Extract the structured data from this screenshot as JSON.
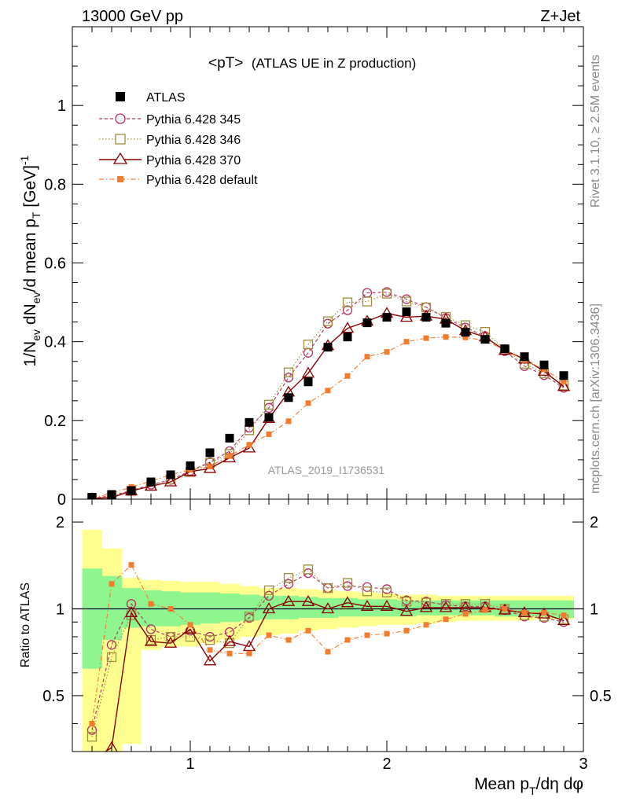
{
  "header": {
    "left": "13000 GeV pp",
    "right": "Z+Jet"
  },
  "side_labels": {
    "rivet": "Rivet 3.1.10, ≥ 2.5M events",
    "site": "mcplots.cern.ch [arXiv:1306.3436]"
  },
  "chart_data": [
    {
      "type": "scatter",
      "panel": "main",
      "title": "<pT>",
      "subtitle": "(ATLAS UE in Z production)",
      "analysis_label": "ATLAS_2019_I1736531",
      "ylabel": "1/N_ev dN_ev/d mean p_T [GeV]^-1",
      "ylabel_parts": {
        "p1": "1/N",
        "p1sub": "ev",
        "p2": " dN",
        "p2sub": "ev",
        "p3": "/d mean p",
        "p3sub": "T",
        "p4": " [GeV]",
        "p4sup": "-1"
      },
      "xlim": [
        0.4,
        3.0
      ],
      "ylim": [
        0,
        1.2
      ],
      "yticks": [
        0,
        0.2,
        0.4,
        0.6,
        0.8,
        1
      ],
      "ytick_labels": [
        "0",
        "0.2",
        "0.4",
        "0.6",
        "0.8",
        "1"
      ],
      "legend_position": "top-left",
      "x": [
        0.5,
        0.6,
        0.7,
        0.8,
        0.9,
        1.0,
        1.1,
        1.2,
        1.3,
        1.4,
        1.5,
        1.6,
        1.7,
        1.8,
        1.9,
        2.0,
        2.1,
        2.2,
        2.3,
        2.4,
        2.5,
        2.6,
        2.7,
        2.8,
        2.9
      ],
      "series": [
        {
          "name": "ATLAS",
          "color": "#000000",
          "marker": "filled-square",
          "line": "none",
          "values": [
            0.005,
            0.012,
            0.022,
            0.044,
            0.062,
            0.085,
            0.118,
            0.155,
            0.195,
            0.208,
            0.258,
            0.298,
            0.386,
            0.412,
            0.448,
            0.462,
            0.476,
            0.462,
            0.447,
            0.424,
            0.406,
            0.382,
            0.362,
            0.341,
            0.314
          ]
        },
        {
          "name": "Pythia 6.428 345",
          "color": "#b03060",
          "marker": "open-circle",
          "line": "dashed",
          "values": [
            0.002,
            0.009,
            0.022,
            0.037,
            0.049,
            0.072,
            0.094,
            0.122,
            0.182,
            0.232,
            0.309,
            0.372,
            0.446,
            0.48,
            0.524,
            0.526,
            0.508,
            0.488,
            0.46,
            0.436,
            0.414,
            0.376,
            0.338,
            0.315,
            0.283
          ]
        },
        {
          "name": "Pythia 6.428 346",
          "color": "#a08c3c",
          "marker": "open-square",
          "line": "dotted",
          "values": [
            0.003,
            0.008,
            0.021,
            0.034,
            0.05,
            0.069,
            0.092,
            0.115,
            0.175,
            0.24,
            0.322,
            0.393,
            0.452,
            0.5,
            0.502,
            0.522,
            0.502,
            0.487,
            0.463,
            0.442,
            0.425,
            0.38,
            0.344,
            0.32,
            0.289
          ]
        },
        {
          "name": "Pythia 6.428 370",
          "color": "#8b0000",
          "marker": "open-triangle",
          "line": "solid",
          "values": [
            0.0015,
            0.004,
            0.021,
            0.033,
            0.044,
            0.07,
            0.078,
            0.105,
            0.13,
            0.205,
            0.272,
            0.32,
            0.39,
            0.434,
            0.452,
            0.472,
            0.462,
            0.465,
            0.457,
            0.428,
            0.412,
            0.378,
            0.356,
            0.325,
            0.286
          ]
        },
        {
          "name": "Pythia 6.428 default",
          "color": "#f37b2d",
          "marker": "filled-small-square",
          "line": "dashdot",
          "values": [
            0.002,
            0.015,
            0.031,
            0.046,
            0.062,
            0.075,
            0.083,
            0.11,
            0.138,
            0.165,
            0.198,
            0.244,
            0.276,
            0.313,
            0.362,
            0.374,
            0.4,
            0.409,
            0.412,
            0.411,
            0.403,
            0.379,
            0.353,
            0.33,
            0.299
          ]
        }
      ]
    },
    {
      "type": "scatter",
      "panel": "ratio",
      "ylabel": "Ratio to ATLAS",
      "xlabel": "Mean p_T/dη dφ",
      "xlabel_parts": {
        "p1": "Mean p",
        "p1sub": "T",
        "p2": "/dη dφ"
      },
      "xlim": [
        0.4,
        3.0
      ],
      "ylim": [
        0.32,
        2.4
      ],
      "log_scale_y": true,
      "yticks": [
        0.5,
        1,
        2
      ],
      "ytick_labels": [
        "0.5",
        "1",
        "2"
      ],
      "xticks": [
        1,
        2,
        3
      ],
      "xtick_labels": [
        "1",
        "2",
        "3"
      ],
      "reference_line": 1,
      "uncertainty_bands": {
        "x_edges": [
          0.45,
          0.55,
          0.65,
          0.75,
          0.85,
          0.95,
          1.05,
          1.15,
          1.25,
          1.35,
          1.45,
          1.55,
          1.65,
          1.75,
          1.85,
          1.95,
          2.05,
          2.15,
          2.25,
          2.35,
          2.45,
          2.55,
          2.65,
          2.75,
          2.85,
          2.95
        ],
        "stat": {
          "color": "#8ff58f",
          "low": [
            0.62,
            0.78,
            0.86,
            0.87,
            0.87,
            0.88,
            0.89,
            0.9,
            0.91,
            0.92,
            0.92,
            0.93,
            0.93,
            0.94,
            0.94,
            0.94,
            0.94,
            0.95,
            0.95,
            0.95,
            0.95,
            0.94,
            0.94,
            0.94,
            0.93
          ],
          "high": [
            1.38,
            1.3,
            1.18,
            1.16,
            1.15,
            1.14,
            1.14,
            1.13,
            1.12,
            1.11,
            1.11,
            1.1,
            1.09,
            1.09,
            1.08,
            1.08,
            1.07,
            1.07,
            1.07,
            1.07,
            1.07,
            1.07,
            1.07,
            1.07,
            1.07
          ]
        },
        "syst": {
          "color": "#ffff8f",
          "low": [
            0.3,
            0.3,
            0.34,
            0.72,
            0.74,
            0.74,
            0.76,
            0.78,
            0.8,
            0.81,
            0.82,
            0.84,
            0.85,
            0.86,
            0.87,
            0.88,
            0.88,
            0.89,
            0.9,
            0.91,
            0.91,
            0.91,
            0.91,
            0.92,
            0.92
          ],
          "high": [
            1.88,
            1.62,
            1.28,
            1.26,
            1.25,
            1.24,
            1.24,
            1.22,
            1.2,
            1.18,
            1.18,
            1.17,
            1.16,
            1.15,
            1.14,
            1.13,
            1.12,
            1.12,
            1.11,
            1.11,
            1.11,
            1.11,
            1.11,
            1.11,
            1.11
          ]
        }
      },
      "series": [
        {
          "name": "Pythia 6.428 345",
          "color": "#b03060",
          "marker": "open-circle",
          "line": "dashed",
          "values": [
            0.38,
            0.75,
            1.04,
            0.85,
            0.8,
            0.84,
            0.8,
            0.83,
            0.93,
            1.11,
            1.22,
            1.33,
            1.18,
            1.2,
            1.19,
            1.17,
            1.07,
            1.06,
            1.03,
            1.02,
            1.02,
            0.99,
            0.94,
            0.93,
            0.9
          ]
        },
        {
          "name": "Pythia 6.428 346",
          "color": "#a08c3c",
          "marker": "open-square",
          "line": "dotted",
          "values": [
            0.36,
            0.68,
            0.95,
            0.78,
            0.8,
            0.8,
            0.78,
            0.76,
            0.94,
            1.16,
            1.28,
            1.37,
            1.18,
            1.23,
            1.15,
            1.14,
            1.06,
            1.05,
            1.04,
            1.04,
            1.04,
            1.0,
            0.95,
            0.94,
            0.92
          ]
        },
        {
          "name": "Pythia 6.428 370",
          "color": "#8b0000",
          "marker": "open-triangle",
          "line": "solid",
          "values": [
            0.3,
            0.33,
            0.97,
            0.77,
            0.76,
            0.85,
            0.66,
            0.77,
            0.74,
            1.0,
            1.06,
            1.06,
            1.0,
            1.05,
            1.02,
            1.02,
            0.98,
            1.01,
            1.01,
            1.01,
            1.01,
            0.99,
            0.97,
            0.96,
            0.91
          ]
        },
        {
          "name": "Pythia 6.428 default",
          "color": "#f37b2d",
          "marker": "filled-small-square",
          "line": "dashdot",
          "values": [
            0.4,
            1.22,
            1.42,
            1.04,
            1.0,
            0.88,
            0.72,
            0.7,
            0.7,
            0.81,
            0.78,
            0.84,
            0.71,
            0.78,
            0.81,
            0.82,
            0.84,
            0.88,
            0.92,
            0.96,
            0.99,
            1.0,
            0.97,
            0.97,
            0.95
          ]
        }
      ]
    }
  ]
}
